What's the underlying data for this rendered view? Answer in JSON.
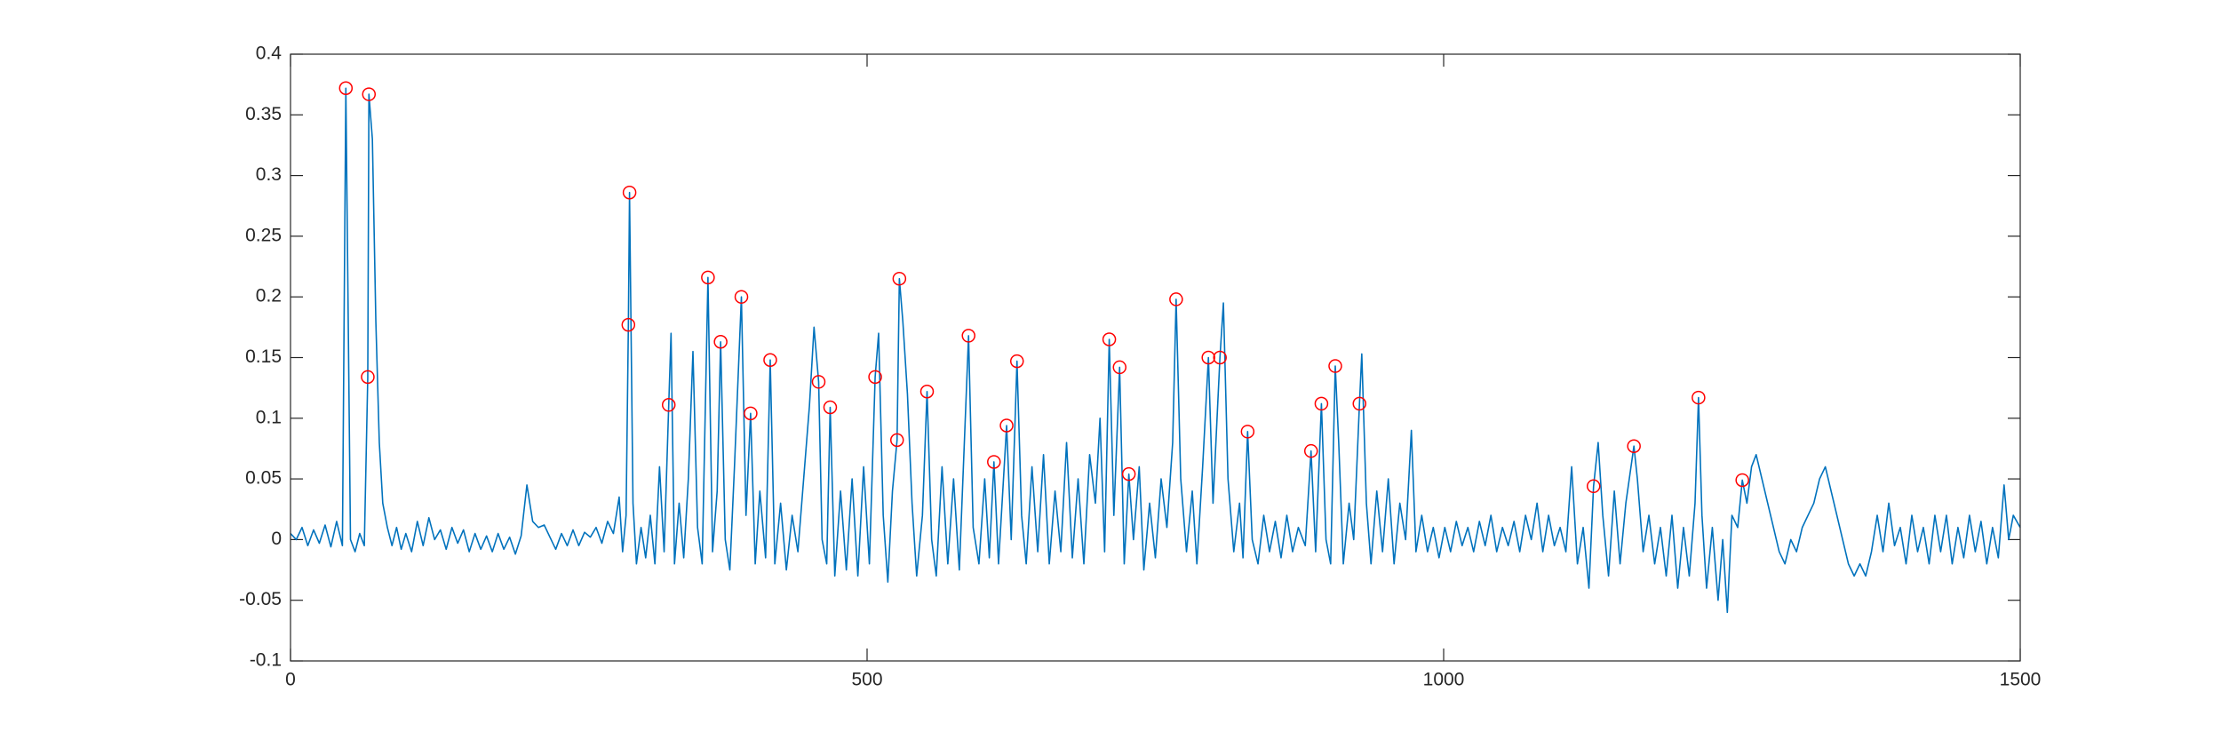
{
  "chart_data": {
    "type": "line",
    "xlim": [
      0,
      1500
    ],
    "xticks": [
      0,
      500,
      1000,
      1500
    ],
    "ylim": [
      -0.1,
      0.4
    ],
    "yticks": [
      -0.1,
      -0.05,
      0,
      0.05,
      0.1,
      0.15,
      0.2,
      0.25,
      0.3,
      0.35,
      0.4
    ],
    "series": [
      {
        "color": "#0072bd",
        "x": [
          0,
          5,
          10,
          15,
          20,
          25,
          30,
          35,
          40,
          45,
          48,
          52,
          56,
          60,
          64,
          67,
          68,
          71,
          74,
          77,
          80,
          84,
          88,
          92,
          96,
          100,
          105,
          110,
          115,
          120,
          125,
          130,
          135,
          140,
          145,
          150,
          155,
          160,
          165,
          170,
          175,
          180,
          185,
          190,
          195,
          200,
          205,
          210,
          215,
          220,
          225,
          230,
          235,
          240,
          245,
          250,
          255,
          260,
          265,
          270,
          275,
          280,
          285,
          288,
          291,
          293,
          294,
          297,
          300,
          304,
          308,
          312,
          316,
          320,
          324,
          328,
          330,
          333,
          337,
          341,
          345,
          349,
          353,
          357,
          362,
          366,
          370,
          373,
          377,
          381,
          385,
          391,
          395,
          399,
          403,
          407,
          412,
          416,
          420,
          425,
          430,
          435,
          440,
          445,
          450,
          454,
          458,
          461,
          465,
          468,
          472,
          477,
          482,
          487,
          492,
          497,
          502,
          507,
          510,
          514,
          518,
          522,
          526,
          528,
          531,
          535,
          539,
          543,
          548,
          552,
          556,
          560,
          565,
          570,
          575,
          580,
          588,
          592,
          597,
          602,
          606,
          610,
          614,
          621,
          625,
          630,
          634,
          638,
          643,
          648,
          653,
          658,
          663,
          668,
          673,
          678,
          683,
          688,
          693,
          698,
          702,
          706,
          710,
          714,
          719,
          723,
          727,
          731,
          736,
          740,
          745,
          750,
          755,
          760,
          765,
          768,
          772,
          777,
          782,
          786,
          791,
          796,
          800,
          806,
          809,
          813,
          818,
          823,
          826,
          830,
          834,
          839,
          844,
          849,
          854,
          859,
          864,
          869,
          874,
          880,
          885,
          889,
          894,
          898,
          902,
          906,
          909,
          913,
          918,
          922,
          927,
          929,
          933,
          937,
          942,
          947,
          952,
          957,
          962,
          967,
          972,
          976,
          981,
          986,
          991,
          996,
          1001,
          1006,
          1011,
          1016,
          1021,
          1026,
          1031,
          1036,
          1041,
          1046,
          1051,
          1056,
          1061,
          1066,
          1071,
          1076,
          1081,
          1086,
          1091,
          1096,
          1101,
          1106,
          1111,
          1116,
          1121,
          1126,
          1130,
          1134,
          1138,
          1143,
          1148,
          1153,
          1158,
          1165,
          1168,
          1173,
          1178,
          1183,
          1188,
          1193,
          1198,
          1203,
          1208,
          1213,
          1218,
          1221,
          1224,
          1228,
          1233,
          1238,
          1242,
          1246,
          1250,
          1255,
          1259,
          1263,
          1267,
          1271,
          1276,
          1281,
          1286,
          1291,
          1296,
          1301,
          1306,
          1311,
          1316,
          1321,
          1326,
          1331,
          1336,
          1341,
          1346,
          1351,
          1356,
          1361,
          1366,
          1371,
          1376,
          1381,
          1386,
          1391,
          1396,
          1401,
          1406,
          1411,
          1416,
          1421,
          1426,
          1431,
          1436,
          1441,
          1446,
          1451,
          1456,
          1461,
          1466,
          1471,
          1476,
          1481,
          1486,
          1490,
          1494,
          1500
        ],
        "values": [
          0.005,
          0,
          0.01,
          -0.005,
          0.008,
          -0.003,
          0.012,
          -0.006,
          0.015,
          -0.005,
          0.372,
          0.0,
          -0.01,
          0.005,
          -0.005,
          0.134,
          0.367,
          0.33,
          0.18,
          0.08,
          0.03,
          0.01,
          -0.005,
          0.01,
          -0.008,
          0.005,
          -0.01,
          0.015,
          -0.005,
          0.018,
          0,
          0.008,
          -0.008,
          0.01,
          -0.003,
          0.008,
          -0.01,
          0.005,
          -0.008,
          0.003,
          -0.01,
          0.005,
          -0.008,
          0.002,
          -0.012,
          0.003,
          0.045,
          0.015,
          0.01,
          0.012,
          0.002,
          -0.008,
          0.005,
          -0.005,
          0.008,
          -0.005,
          0.006,
          0.002,
          0.01,
          -0.003,
          0.015,
          0.005,
          0.035,
          -0.01,
          0.02,
          0.177,
          0.286,
          0.03,
          -0.02,
          0.01,
          -0.015,
          0.02,
          -0.02,
          0.06,
          -0.01,
          0.111,
          0.17,
          -0.02,
          0.03,
          -0.015,
          0.05,
          0.155,
          0.01,
          -0.02,
          0.216,
          -0.01,
          0.04,
          0.163,
          0.0,
          -0.025,
          0.06,
          0.2,
          0.02,
          0.104,
          -0.02,
          0.04,
          -0.015,
          0.148,
          -0.02,
          0.03,
          -0.025,
          0.02,
          -0.01,
          0.05,
          0.11,
          0.175,
          0.13,
          0.0,
          -0.02,
          0.109,
          -0.03,
          0.04,
          -0.025,
          0.05,
          -0.03,
          0.06,
          -0.02,
          0.134,
          0.17,
          0.02,
          -0.035,
          0.04,
          0.082,
          0.215,
          0.18,
          0.12,
          0.03,
          -0.03,
          0.02,
          0.122,
          0.0,
          -0.03,
          0.06,
          -0.02,
          0.05,
          -0.025,
          0.168,
          0.01,
          -0.02,
          0.05,
          -0.015,
          0.064,
          -0.02,
          0.094,
          0.0,
          0.147,
          0.02,
          -0.02,
          0.06,
          -0.01,
          0.07,
          -0.02,
          0.04,
          -0.01,
          0.08,
          -0.015,
          0.05,
          -0.02,
          0.07,
          0.03,
          0.1,
          -0.01,
          0.165,
          0.02,
          0.142,
          -0.02,
          0.054,
          0.0,
          0.06,
          -0.025,
          0.03,
          -0.015,
          0.05,
          0.01,
          0.08,
          0.198,
          0.05,
          -0.01,
          0.04,
          -0.02,
          0.06,
          0.15,
          0.03,
          0.15,
          0.195,
          0.05,
          -0.01,
          0.03,
          -0.015,
          0.089,
          0.0,
          -0.02,
          0.02,
          -0.01,
          0.015,
          -0.015,
          0.02,
          -0.01,
          0.01,
          -0.005,
          0.073,
          -0.01,
          0.112,
          0.0,
          -0.02,
          0.143,
          0.08,
          -0.02,
          0.03,
          0.0,
          0.112,
          0.153,
          0.03,
          -0.02,
          0.04,
          -0.01,
          0.05,
          -0.02,
          0.03,
          0.0,
          0.09,
          -0.01,
          0.02,
          -0.01,
          0.01,
          -0.015,
          0.01,
          -0.01,
          0.015,
          -0.005,
          0.01,
          -0.01,
          0.015,
          -0.005,
          0.02,
          -0.01,
          0.01,
          -0.005,
          0.015,
          -0.01,
          0.02,
          0.0,
          0.03,
          -0.01,
          0.02,
          -0.005,
          0.01,
          -0.01,
          0.06,
          -0.02,
          0.01,
          -0.04,
          0.044,
          0.08,
          0.02,
          -0.03,
          0.04,
          -0.02,
          0.03,
          0.077,
          0.05,
          -0.01,
          0.02,
          -0.02,
          0.01,
          -0.03,
          0.02,
          -0.04,
          0.01,
          -0.03,
          0.03,
          0.117,
          0.02,
          -0.04,
          0.01,
          -0.05,
          0.0,
          -0.06,
          0.02,
          0.01,
          0.049,
          0.03,
          0.06,
          0.07,
          0.05,
          0.03,
          0.01,
          -0.01,
          -0.02,
          0.0,
          -0.01,
          0.01,
          0.02,
          0.03,
          0.05,
          0.06,
          0.04,
          0.02,
          0.0,
          -0.02,
          -0.03,
          -0.02,
          -0.03,
          -0.01,
          0.02,
          -0.01,
          0.03,
          -0.005,
          0.01,
          -0.02,
          0.02,
          -0.01,
          0.01,
          -0.02,
          0.02,
          -0.01,
          0.02,
          -0.02,
          0.01,
          -0.015,
          0.02,
          -0.01,
          0.015,
          -0.02,
          0.01,
          -0.015,
          0.045,
          0.0,
          0.02,
          0.01
        ]
      },
      {
        "color": "#ff0000",
        "marker": "circle",
        "x": [
          48,
          68,
          67,
          294,
          293,
          328,
          362,
          373,
          391,
          399,
          416,
          458,
          468,
          507,
          526,
          528,
          552,
          588,
          610,
          621,
          630,
          710,
          719,
          727,
          768,
          796,
          806,
          830,
          885,
          894,
          906,
          927,
          1130,
          1165,
          1221,
          1259
        ],
        "values": [
          0.372,
          0.367,
          0.134,
          0.286,
          0.177,
          0.111,
          0.216,
          0.163,
          0.2,
          0.104,
          0.148,
          0.13,
          0.109,
          0.134,
          0.082,
          0.215,
          0.122,
          0.168,
          0.064,
          0.094,
          0.147,
          0.165,
          0.142,
          0.054,
          0.198,
          0.15,
          0.15,
          0.089,
          0.073,
          0.112,
          0.143,
          0.112,
          0.044,
          0.077,
          0.117,
          0.049
        ]
      }
    ]
  }
}
